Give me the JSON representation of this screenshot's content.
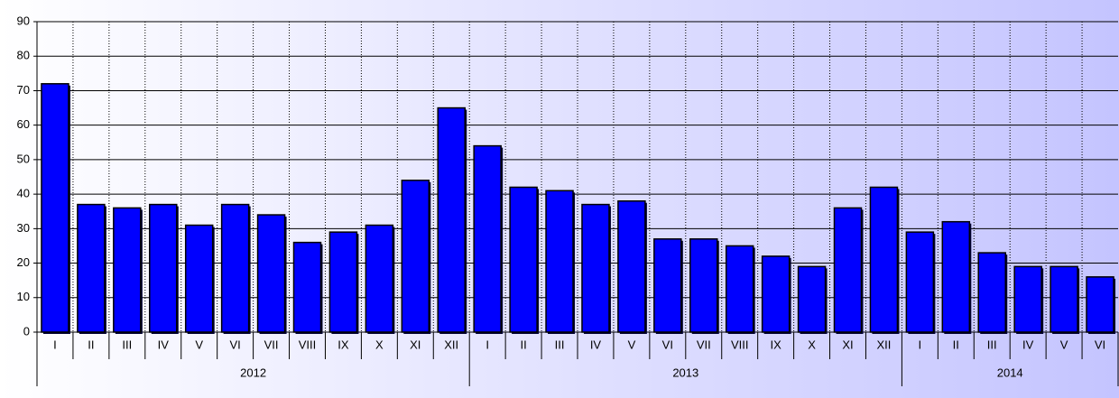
{
  "chart_data": {
    "type": "bar",
    "groups": [
      {
        "label": "2012",
        "categories": [
          "I",
          "II",
          "III",
          "IV",
          "V",
          "VI",
          "VII",
          "VIII",
          "IX",
          "X",
          "XI",
          "XII"
        ]
      },
      {
        "label": "2013",
        "categories": [
          "I",
          "II",
          "III",
          "IV",
          "V",
          "VI",
          "VII",
          "VIII",
          "IX",
          "X",
          "XI",
          "XII"
        ]
      },
      {
        "label": "2014",
        "categories": [
          "I",
          "II",
          "III",
          "IV",
          "V",
          "VI"
        ]
      }
    ],
    "values": [
      72,
      37,
      36,
      37,
      31,
      37,
      34,
      26,
      29,
      31,
      44,
      65,
      54,
      42,
      41,
      37,
      38,
      27,
      27,
      25,
      22,
      19,
      36,
      42,
      29,
      32,
      23,
      19,
      19,
      16
    ],
    "color": "#0000ff",
    "ylim": [
      0,
      90
    ],
    "yticks": [
      0,
      10,
      20,
      30,
      40,
      50,
      60,
      70,
      80,
      90
    ],
    "grid": true
  }
}
